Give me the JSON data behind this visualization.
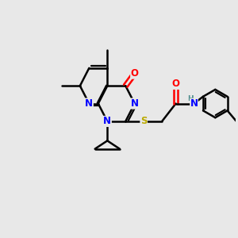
{
  "background_color": "#e8e8e8",
  "atom_colors": {
    "C": "#000000",
    "N": "#0000ff",
    "O": "#ff0000",
    "S": "#bbaa00",
    "H": "#4a8a8a"
  },
  "bond_color": "#000000",
  "bond_width": 1.8,
  "figsize": [
    3.0,
    3.0
  ],
  "dpi": 100
}
